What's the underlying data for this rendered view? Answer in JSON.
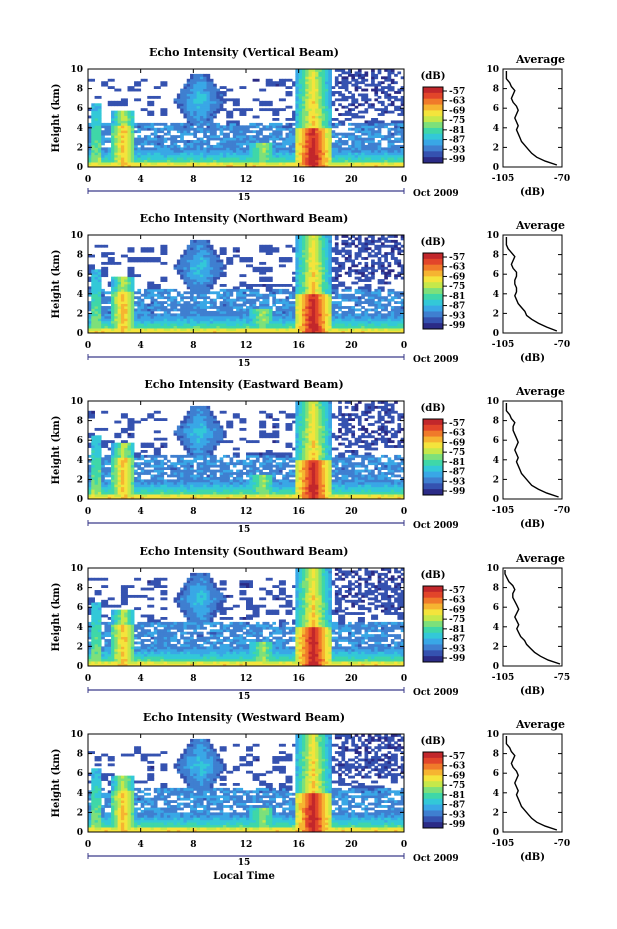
{
  "figure": {
    "xlabel": "Local Time",
    "date_label": "Oct 2009",
    "day_label": "15",
    "colorbar_unit": "(dB)",
    "side_title": "Average",
    "side_xlabel": "(dB)",
    "ylabel": "Height (km)"
  },
  "colors": {
    "scale": [
      "#2b2b86",
      "#3552b0",
      "#3f7fd0",
      "#39a7e6",
      "#33c8d8",
      "#3fd7a8",
      "#7de07a",
      "#c6e84a",
      "#f4e43c",
      "#f6b431",
      "#f07a2a",
      "#e2452a",
      "#c2272b"
    ]
  },
  "chart_data": [
    {
      "type": "heatmap",
      "title": "Echo Intensity (Vertical Beam)",
      "ylabel": "Height (km)",
      "xlabel": "",
      "x_ticks": [
        "0",
        "4",
        "8",
        "12",
        "16",
        "20",
        "0"
      ],
      "y_ticks": [
        "0",
        "2",
        "4",
        "6",
        "8",
        "10"
      ],
      "xlim": [
        0,
        24
      ],
      "ylim": [
        0,
        10
      ],
      "colorbar_ticks": [
        "-57",
        "-63",
        "-69",
        "-75",
        "-81",
        "-87",
        "-93",
        "-99"
      ],
      "colorbar_range": [
        -99,
        -57
      ],
      "profile": {
        "title": "Average",
        "xlabel": "(dB)",
        "x_ticks": [
          "-105",
          "-70"
        ],
        "y_ticks": [
          "0",
          "2",
          "4",
          "6",
          "8",
          "10"
        ],
        "xlim": [
          -105,
          -70
        ],
        "height_km": [
          0.2,
          0.6,
          1.0,
          1.4,
          1.8,
          2.2,
          2.6,
          3.0,
          3.4,
          3.8,
          4.2,
          4.6,
          5.0,
          5.4,
          5.8,
          6.2,
          6.6,
          7.0,
          7.4,
          7.8,
          8.2,
          8.6,
          9.0,
          9.4,
          9.8
        ],
        "db": [
          -73,
          -80,
          -85,
          -88,
          -90,
          -92,
          -94,
          -95,
          -96,
          -97,
          -96,
          -97,
          -98,
          -97,
          -96,
          -97,
          -99,
          -100,
          -99,
          -98,
          -100,
          -101,
          -103,
          -103,
          -103
        ]
      }
    },
    {
      "type": "heatmap",
      "title": "Echo Intensity (Northward Beam)",
      "ylabel": "Height (km)",
      "xlabel": "",
      "x_ticks": [
        "0",
        "4",
        "8",
        "12",
        "16",
        "20",
        "0"
      ],
      "y_ticks": [
        "0",
        "2",
        "4",
        "6",
        "8",
        "10"
      ],
      "xlim": [
        0,
        24
      ],
      "ylim": [
        0,
        10
      ],
      "colorbar_ticks": [
        "-57",
        "-63",
        "-69",
        "-75",
        "-81",
        "-87",
        "-93",
        "-99"
      ],
      "colorbar_range": [
        -99,
        -57
      ],
      "profile": {
        "title": "Average",
        "xlabel": "(dB)",
        "x_ticks": [
          "-105",
          "-70"
        ],
        "y_ticks": [
          "0",
          "2",
          "4",
          "6",
          "8",
          "10"
        ],
        "xlim": [
          -105,
          -70
        ],
        "height_km": [
          0.2,
          0.6,
          1.0,
          1.4,
          1.8,
          2.2,
          2.6,
          3.0,
          3.4,
          3.8,
          4.2,
          4.6,
          5.0,
          5.4,
          5.8,
          6.2,
          6.6,
          7.0,
          7.4,
          7.8,
          8.2,
          8.6,
          9.0,
          9.4,
          9.8
        ],
        "db": [
          -73,
          -79,
          -84,
          -88,
          -91,
          -92,
          -94,
          -96,
          -97,
          -98,
          -97,
          -97,
          -98,
          -98,
          -97,
          -97,
          -99,
          -100,
          -99,
          -98,
          -100,
          -102,
          -103,
          -103,
          -103
        ]
      }
    },
    {
      "type": "heatmap",
      "title": "Echo Intensity (Eastward Beam)",
      "ylabel": "Height (km)",
      "xlabel": "",
      "x_ticks": [
        "0",
        "4",
        "8",
        "12",
        "16",
        "20",
        "0"
      ],
      "y_ticks": [
        "0",
        "2",
        "4",
        "6",
        "8",
        "10"
      ],
      "xlim": [
        0,
        24
      ],
      "ylim": [
        0,
        10
      ],
      "colorbar_ticks": [
        "-57",
        "-63",
        "-69",
        "-75",
        "-81",
        "-87",
        "-93",
        "-99"
      ],
      "colorbar_range": [
        -99,
        -57
      ],
      "profile": {
        "title": "Average",
        "xlabel": "(dB)",
        "x_ticks": [
          "-105",
          "-70"
        ],
        "y_ticks": [
          "0",
          "2",
          "4",
          "6",
          "8",
          "10"
        ],
        "xlim": [
          -105,
          -70
        ],
        "height_km": [
          0.2,
          0.6,
          1.0,
          1.4,
          1.8,
          2.2,
          2.6,
          3.0,
          3.4,
          3.8,
          4.2,
          4.6,
          5.0,
          5.4,
          5.8,
          6.2,
          6.6,
          7.0,
          7.4,
          7.8,
          8.2,
          8.6,
          9.0,
          9.4,
          9.8
        ],
        "db": [
          -72,
          -79,
          -84,
          -88,
          -90,
          -92,
          -94,
          -95,
          -96,
          -97,
          -96,
          -97,
          -98,
          -97,
          -96,
          -97,
          -98,
          -99,
          -99,
          -98,
          -100,
          -101,
          -103,
          -103,
          -103
        ]
      }
    },
    {
      "type": "heatmap",
      "title": "Echo Intensity (Southward Beam)",
      "ylabel": "Height (km)",
      "xlabel": "",
      "x_ticks": [
        "0",
        "4",
        "8",
        "12",
        "16",
        "20",
        "0"
      ],
      "y_ticks": [
        "0",
        "2",
        "4",
        "6",
        "8",
        "10"
      ],
      "xlim": [
        0,
        24
      ],
      "ylim": [
        0,
        10
      ],
      "colorbar_ticks": [
        "-57",
        "-63",
        "-69",
        "-75",
        "-81",
        "-87",
        "-93",
        "-99"
      ],
      "colorbar_range": [
        -99,
        -57
      ],
      "profile": {
        "title": "Average",
        "xlabel": "(dB)",
        "x_ticks": [
          "-105",
          "-75"
        ],
        "y_ticks": [
          "0",
          "2",
          "4",
          "6",
          "8",
          "10"
        ],
        "xlim": [
          -105,
          -75
        ],
        "height_km": [
          0.2,
          0.6,
          1.0,
          1.4,
          1.8,
          2.2,
          2.6,
          3.0,
          3.4,
          3.8,
          4.2,
          4.6,
          5.0,
          5.4,
          5.8,
          6.2,
          6.6,
          7.0,
          7.4,
          7.8,
          8.2,
          8.6,
          9.0,
          9.4,
          9.8
        ],
        "db": [
          -76,
          -82,
          -86,
          -89,
          -91,
          -93,
          -94,
          -96,
          -97,
          -98,
          -97,
          -98,
          -99,
          -98,
          -97,
          -98,
          -99,
          -100,
          -100,
          -99,
          -100,
          -102,
          -103,
          -104,
          -104
        ]
      }
    },
    {
      "type": "heatmap",
      "title": "Echo Intensity (Westward Beam)",
      "ylabel": "Height (km)",
      "xlabel": "Local Time",
      "x_ticks": [
        "0",
        "4",
        "8",
        "12",
        "16",
        "20",
        "0"
      ],
      "y_ticks": [
        "0",
        "2",
        "4",
        "6",
        "8",
        "10"
      ],
      "xlim": [
        0,
        24
      ],
      "ylim": [
        0,
        10
      ],
      "colorbar_ticks": [
        "-57",
        "-63",
        "-69",
        "-75",
        "-81",
        "-87",
        "-93",
        "-99"
      ],
      "colorbar_range": [
        -99,
        -57
      ],
      "profile": {
        "title": "Average",
        "xlabel": "(dB)",
        "x_ticks": [
          "-105",
          "-70"
        ],
        "y_ticks": [
          "0",
          "2",
          "4",
          "6",
          "8",
          "10"
        ],
        "xlim": [
          -105,
          -70
        ],
        "height_km": [
          0.2,
          0.6,
          1.0,
          1.4,
          1.8,
          2.2,
          2.6,
          3.0,
          3.4,
          3.8,
          4.2,
          4.6,
          5.0,
          5.4,
          5.8,
          6.2,
          6.6,
          7.0,
          7.4,
          7.8,
          8.2,
          8.6,
          9.0,
          9.4,
          9.8
        ],
        "db": [
          -73,
          -80,
          -85,
          -88,
          -90,
          -92,
          -94,
          -95,
          -96,
          -97,
          -96,
          -97,
          -98,
          -97,
          -96,
          -97,
          -99,
          -100,
          -99,
          -98,
          -100,
          -101,
          -103,
          -103,
          -103
        ]
      }
    }
  ]
}
